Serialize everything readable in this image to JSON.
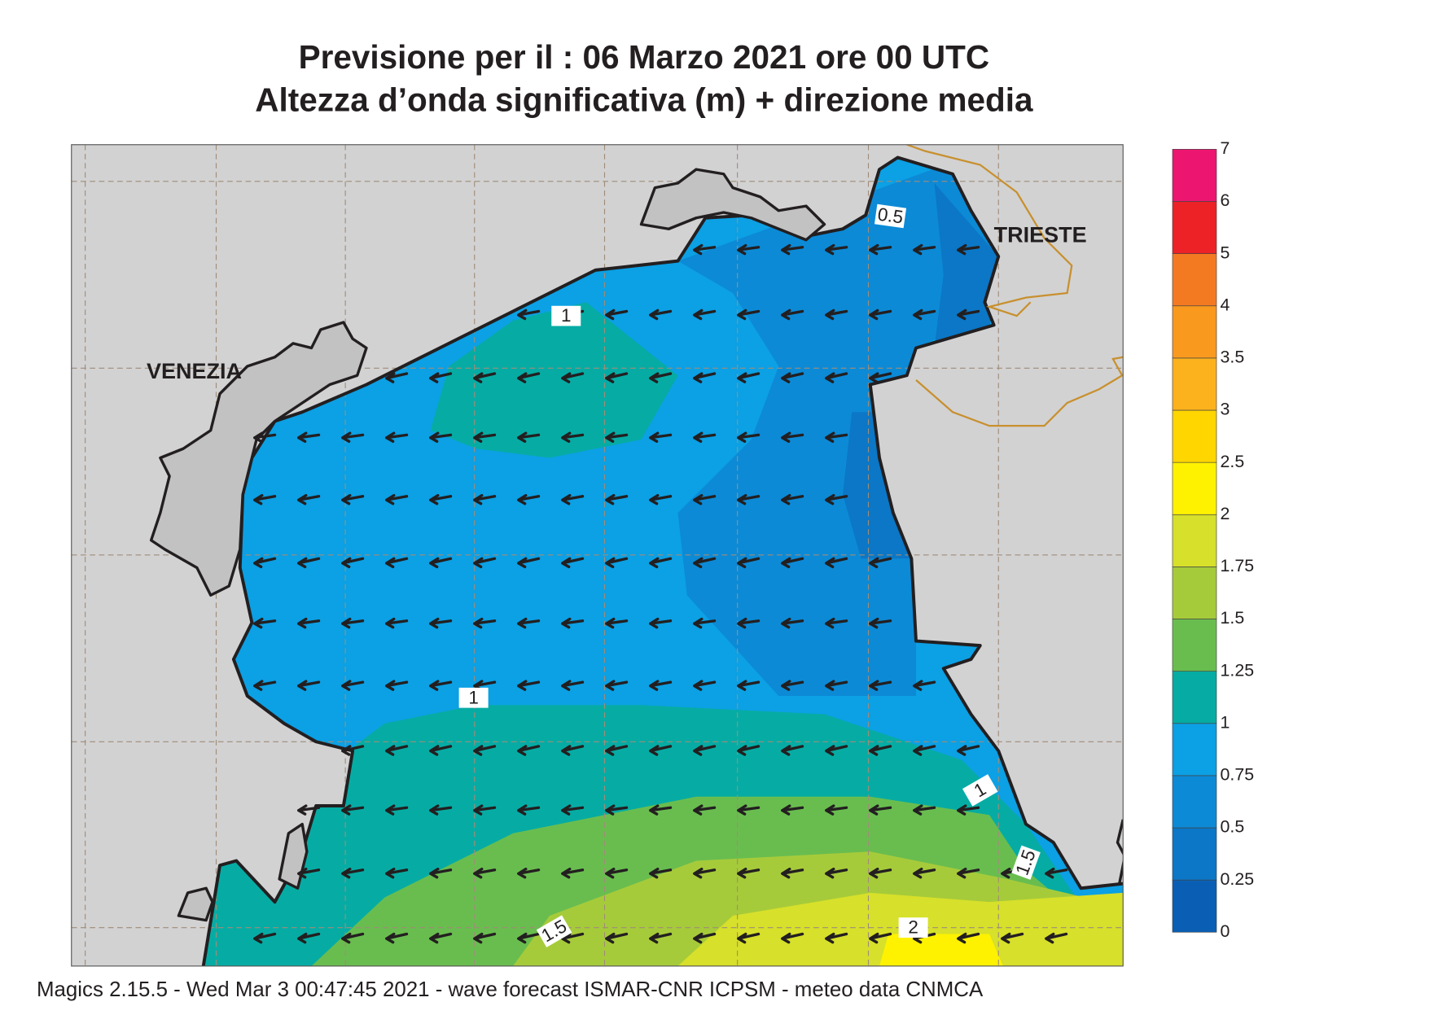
{
  "header": {
    "title": "Previsione per il  :  06   Marzo   2021   ore 00 UTC",
    "subtitle": "Altezza d’onda significativa (m) + direzione media"
  },
  "map": {
    "cities": [
      "VENEZIA",
      "TRIESTE"
    ],
    "contour_labels": [
      0.5,
      1,
      1,
      1,
      1.5,
      1.5,
      2
    ]
  },
  "colorbar": {
    "levels": [
      0,
      0.25,
      0.5,
      0.75,
      1,
      1.25,
      1.5,
      1.75,
      2,
      2.5,
      3,
      3.5,
      4,
      5,
      6,
      7
    ],
    "colors": [
      "#0a5fb4",
      "#0b77c6",
      "#0c8ad6",
      "#0ca0e4",
      "#06aca4",
      "#69bd4f",
      "#a6cb3a",
      "#d7e02a",
      "#fff200",
      "#ffd600",
      "#fcb21c",
      "#f99a1e",
      "#f47a22",
      "#ec2227",
      "#ec1670"
    ]
  },
  "footer": "Magics 2.15.5 - Wed Mar  3 00:47:45 2021 - wave forecast  ISMAR-CNR  ICPSM - meteo data   CNMCA"
}
